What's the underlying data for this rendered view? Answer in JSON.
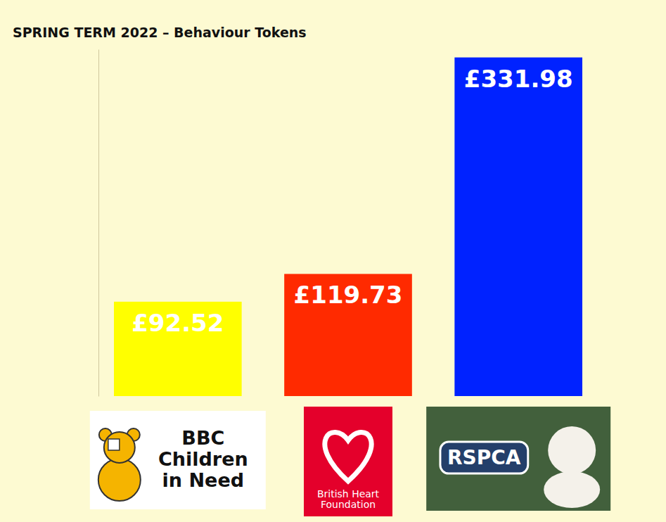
{
  "chart_data": {
    "type": "bar",
    "title": "SPRING TERM 2022 – Behaviour Tokens",
    "categories": [
      "BBC Children in Need",
      "British Heart Foundation",
      "RSPCA"
    ],
    "values": [
      92.52,
      119.73,
      331.98
    ],
    "value_labels": [
      "£92.52",
      "£119.73",
      "£331.98"
    ],
    "colors": [
      "#ffff00",
      "#ff2a00",
      "#0022ff"
    ],
    "ylim": [
      0,
      340
    ],
    "yticks": [],
    "data_labels": true,
    "tick_labels": "x"
  }
}
